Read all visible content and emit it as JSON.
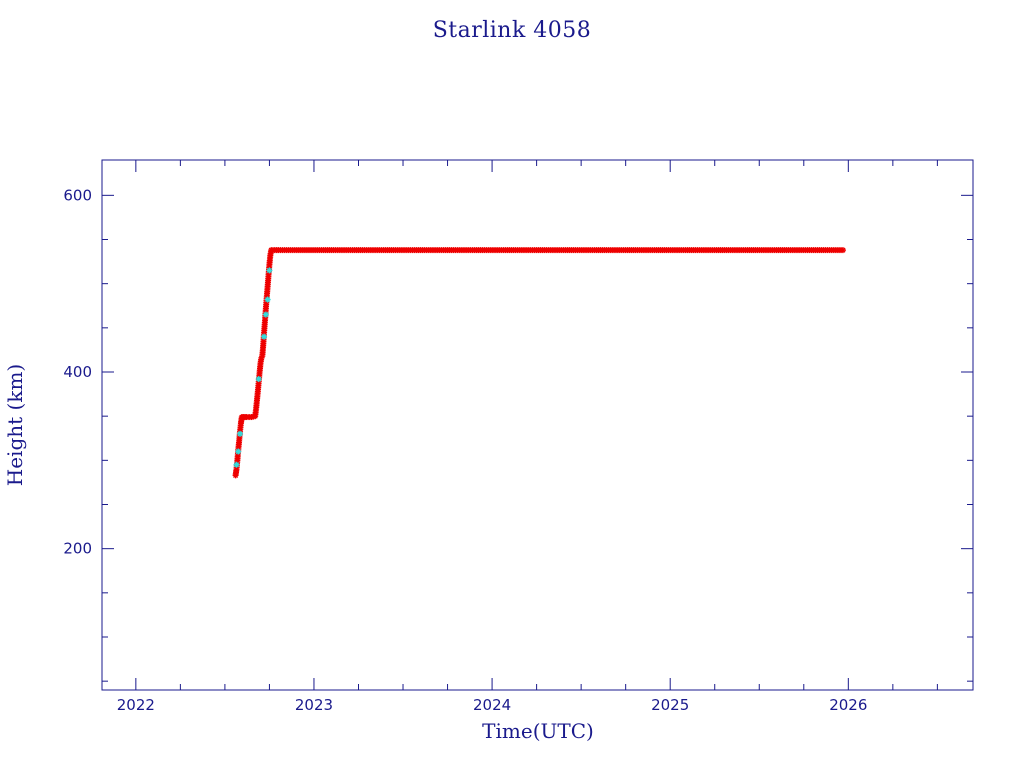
{
  "chart_data": {
    "type": "scatter",
    "title": "Starlink 4058",
    "xlabel": "Time(UTC)",
    "ylabel": "Height (km)",
    "xlim": [
      2021.81,
      2026.7
    ],
    "ylim": [
      40,
      640
    ],
    "x_ticks": [
      2022,
      2023,
      2024,
      2025,
      2026
    ],
    "x_tick_labels": [
      "2022",
      "2023",
      "2024",
      "2025",
      "2026"
    ],
    "y_ticks": [
      200,
      400,
      600
    ],
    "y_tick_labels": [
      "200",
      "400",
      "600"
    ],
    "y_minor_step": 50,
    "x_minor_step": 0.25,
    "grid": false,
    "legend": "none",
    "series": [
      {
        "color": "#ee0000",
        "marker": "asterisk",
        "points": [
          [
            2022.56,
            283
          ],
          [
            2022.565,
            290
          ],
          [
            2022.57,
            300
          ],
          [
            2022.575,
            312
          ],
          [
            2022.58,
            322
          ],
          [
            2022.585,
            333
          ],
          [
            2022.59,
            342
          ],
          [
            2022.595,
            349
          ],
          [
            2022.62,
            349
          ],
          [
            2022.65,
            349
          ],
          [
            2022.67,
            350
          ],
          [
            2022.675,
            358
          ],
          [
            2022.68,
            368
          ],
          [
            2022.685,
            378
          ],
          [
            2022.69,
            389
          ],
          [
            2022.695,
            400
          ],
          [
            2022.7,
            410
          ],
          [
            2022.705,
            416
          ],
          [
            2022.71,
            418
          ],
          [
            2022.715,
            430
          ],
          [
            2022.72,
            445
          ],
          [
            2022.725,
            458
          ],
          [
            2022.73,
            472
          ],
          [
            2022.735,
            485
          ],
          [
            2022.74,
            497
          ],
          [
            2022.745,
            510
          ],
          [
            2022.75,
            522
          ],
          [
            2022.755,
            532
          ],
          [
            2022.76,
            538
          ],
          [
            2022.8,
            538
          ],
          [
            2023.0,
            538
          ],
          [
            2023.25,
            538
          ],
          [
            2023.5,
            538
          ],
          [
            2023.75,
            538
          ],
          [
            2024.0,
            538
          ],
          [
            2024.25,
            538
          ],
          [
            2024.5,
            538
          ],
          [
            2024.75,
            538
          ],
          [
            2025.0,
            538
          ],
          [
            2025.25,
            538
          ],
          [
            2025.5,
            538
          ],
          [
            2025.75,
            538
          ],
          [
            2025.97,
            538
          ]
        ]
      },
      {
        "color": "#33dddd",
        "marker": "asterisk",
        "points": [
          [
            2022.565,
            295
          ],
          [
            2022.575,
            310
          ],
          [
            2022.585,
            330
          ],
          [
            2022.69,
            392
          ],
          [
            2022.72,
            440
          ],
          [
            2022.73,
            465
          ],
          [
            2022.74,
            482
          ],
          [
            2022.75,
            515
          ]
        ]
      }
    ]
  }
}
